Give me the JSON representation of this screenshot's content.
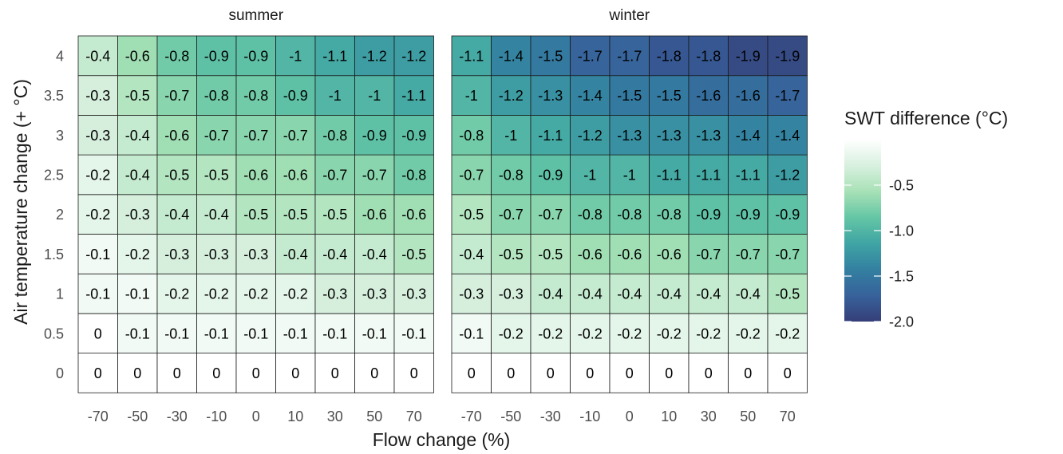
{
  "chart_data": {
    "type": "heatmap",
    "xlabel": "Flow change (%)",
    "ylabel": "Air temperature change (+ °C)",
    "x_categories": [
      "-70",
      "-50",
      "-30",
      "-10",
      "0",
      "10",
      "30",
      "50",
      "70"
    ],
    "y_categories": [
      "0",
      "0.5",
      "1",
      "1.5",
      "2",
      "2.5",
      "3",
      "3.5",
      "4"
    ],
    "panels": [
      {
        "title": "summer",
        "values": [
          [
            0,
            0,
            0,
            0,
            0,
            0,
            0,
            0,
            0
          ],
          [
            0,
            -0.1,
            -0.1,
            -0.1,
            -0.1,
            -0.1,
            -0.1,
            -0.1,
            -0.1
          ],
          [
            -0.1,
            -0.1,
            -0.2,
            -0.2,
            -0.2,
            -0.2,
            -0.3,
            -0.3,
            -0.3
          ],
          [
            -0.1,
            -0.2,
            -0.3,
            -0.3,
            -0.3,
            -0.4,
            -0.4,
            -0.4,
            -0.5
          ],
          [
            -0.2,
            -0.3,
            -0.4,
            -0.4,
            -0.5,
            -0.5,
            -0.5,
            -0.6,
            -0.6
          ],
          [
            -0.2,
            -0.4,
            -0.5,
            -0.5,
            -0.6,
            -0.6,
            -0.7,
            -0.7,
            -0.8
          ],
          [
            -0.3,
            -0.4,
            -0.6,
            -0.7,
            -0.7,
            -0.7,
            -0.8,
            -0.9,
            -0.9
          ],
          [
            -0.3,
            -0.5,
            -0.7,
            -0.8,
            -0.8,
            -0.9,
            -1,
            -1,
            -1.1
          ],
          [
            -0.4,
            -0.6,
            -0.8,
            -0.9,
            -0.9,
            -1,
            -1.1,
            -1.2,
            -1.2
          ]
        ]
      },
      {
        "title": "winter",
        "values": [
          [
            0,
            0,
            0,
            0,
            0,
            0,
            0,
            0,
            0
          ],
          [
            -0.1,
            -0.2,
            -0.2,
            -0.2,
            -0.2,
            -0.2,
            -0.2,
            -0.2,
            -0.2
          ],
          [
            -0.3,
            -0.3,
            -0.4,
            -0.4,
            -0.4,
            -0.4,
            -0.4,
            -0.4,
            -0.5
          ],
          [
            -0.4,
            -0.5,
            -0.5,
            -0.6,
            -0.6,
            -0.6,
            -0.7,
            -0.7,
            -0.7
          ],
          [
            -0.5,
            -0.7,
            -0.7,
            -0.8,
            -0.8,
            -0.8,
            -0.9,
            -0.9,
            -0.9
          ],
          [
            -0.7,
            -0.8,
            -0.9,
            -1,
            -1,
            -1.1,
            -1.1,
            -1.1,
            -1.2
          ],
          [
            -0.8,
            -1,
            -1.1,
            -1.2,
            -1.3,
            -1.3,
            -1.3,
            -1.4,
            -1.4
          ],
          [
            -1,
            -1.2,
            -1.3,
            -1.4,
            -1.5,
            -1.5,
            -1.6,
            -1.6,
            -1.7
          ],
          [
            -1.1,
            -1.4,
            -1.5,
            -1.7,
            -1.7,
            -1.8,
            -1.8,
            -1.9,
            -1.9
          ]
        ]
      }
    ],
    "legend": {
      "title": "SWT difference (°C)",
      "range": [
        -2.0,
        0
      ],
      "breaks": [
        -0.5,
        -1.0,
        -1.5,
        -2.0
      ],
      "break_labels": [
        "-0.5",
        "-1.0",
        "-1.5",
        "-2.0"
      ],
      "placement": "right"
    },
    "colors": {
      "scale": [
        "#ffffff",
        "#d8f0df",
        "#a7e1b6",
        "#64c6a5",
        "#3fa4a4",
        "#3380a1",
        "#37629b",
        "#353e78"
      ],
      "zero_cell": "#ffffff",
      "cell_border": "#1a1a1a"
    },
    "grid": true
  }
}
